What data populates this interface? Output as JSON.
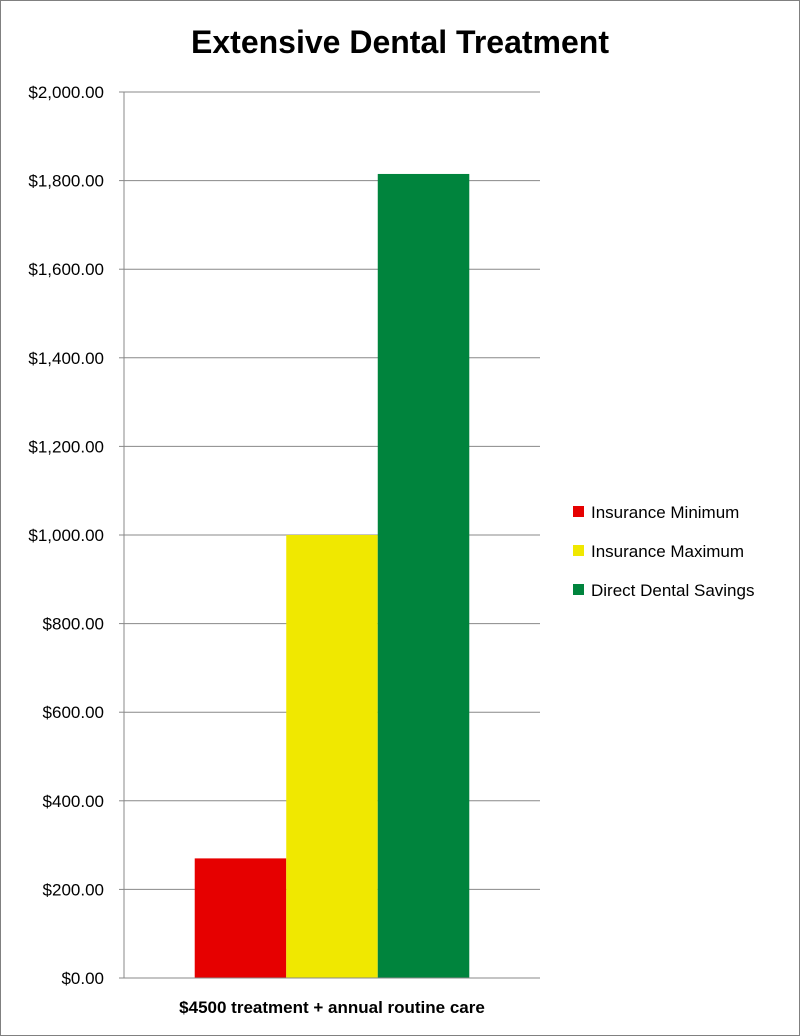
{
  "chart_data": {
    "type": "bar",
    "title": "Extensive Dental Treatment",
    "categories": [
      "$4500 treatment + annual routine care"
    ],
    "series": [
      {
        "name": "Insurance Minimum",
        "values": [
          270
        ],
        "color": "#e60000"
      },
      {
        "name": "Insurance Maximum",
        "values": [
          1000
        ],
        "color": "#f0e800"
      },
      {
        "name": "Direct Dental Savings",
        "values": [
          1815
        ],
        "color": "#00843d"
      }
    ],
    "xlabel": "",
    "ylabel": "",
    "ylim": [
      0,
      2000
    ],
    "yticks": [
      "$0.00",
      "$200.00",
      "$400.00",
      "$600.00",
      "$800.00",
      "$1,000.00",
      "$1,200.00",
      "$1,400.00",
      "$1,600.00",
      "$1,800.00",
      "$2,000.00"
    ],
    "grid": true,
    "legend_position": "right"
  }
}
